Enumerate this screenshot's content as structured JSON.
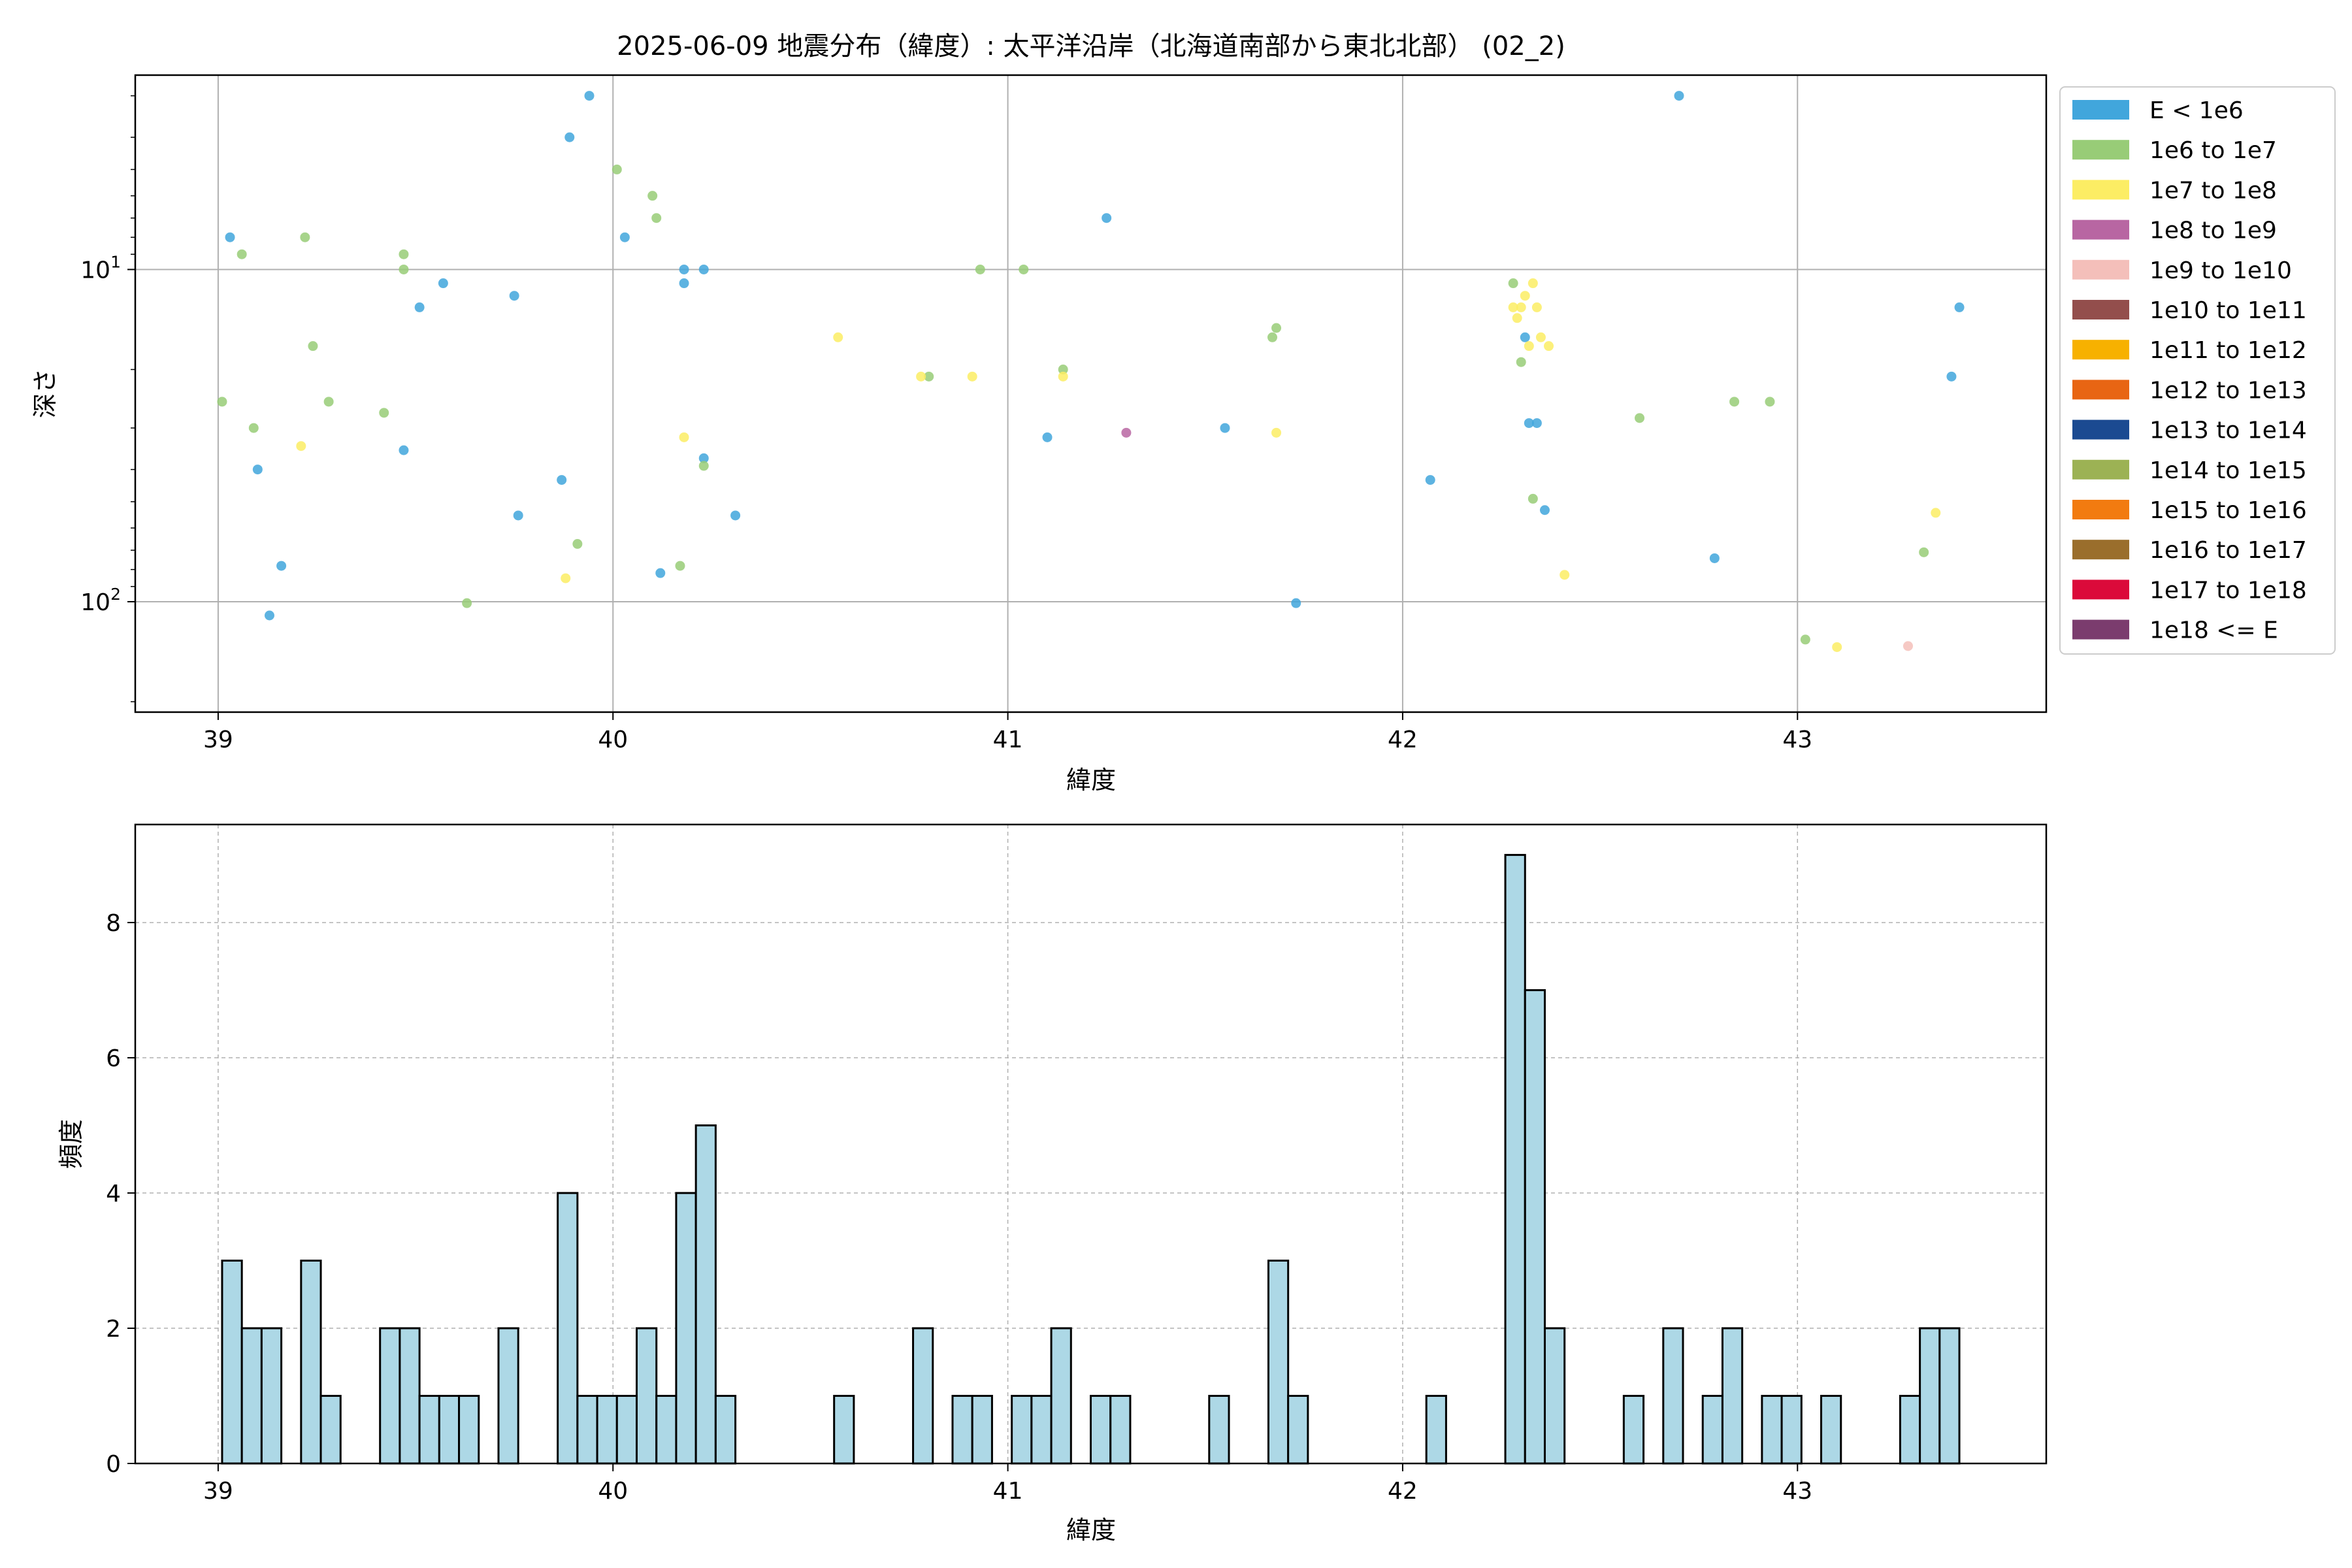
{
  "figure": {
    "title": "2025-06-09 地震分布（緯度）: 太平洋沿岸（北海道南部から東北北部） (02_2)"
  },
  "legend": {
    "entries": [
      {
        "label": "E < 1e6",
        "color": "#41a6dc"
      },
      {
        "label": "1e6 to 1e7",
        "color": "#98cc77"
      },
      {
        "label": "1e7 to 1e8",
        "color": "#fced64"
      },
      {
        "label": "1e8 to 1e9",
        "color": "#b866a2"
      },
      {
        "label": "1e9 to 1e10",
        "color": "#f4bfba"
      },
      {
        "label": "1e10 to 1e11",
        "color": "#934e4c"
      },
      {
        "label": "1e11 to 1e12",
        "color": "#f7b100"
      },
      {
        "label": "1e12 to 1e13",
        "color": "#e86513"
      },
      {
        "label": "1e13 to 1e14",
        "color": "#1b4a91"
      },
      {
        "label": "1e14 to 1e15",
        "color": "#9cb254"
      },
      {
        "label": "1e15 to 1e16",
        "color": "#f27b10"
      },
      {
        "label": "1e16 to 1e17",
        "color": "#9a6e2c"
      },
      {
        "label": "1e17 to 1e18",
        "color": "#db0a3a"
      },
      {
        "label": "1e18 <= E",
        "color": "#7b3c6e"
      }
    ]
  },
  "chart_data": [
    {
      "type": "scatter",
      "xlabel": "緯度",
      "ylabel": "深さ",
      "xlim": [
        38.79,
        43.63
      ],
      "xticks": [
        "39",
        "40",
        "41",
        "42",
        "43"
      ],
      "xtick_values": [
        39,
        40,
        41,
        42,
        43
      ],
      "yscale": "log",
      "yinverted": true,
      "ylim": [
        2.6,
        215
      ],
      "yticks": [
        10,
        100
      ],
      "ytick_labels": [
        [
          "10",
          "1"
        ],
        [
          "10",
          "2"
        ]
      ],
      "grid": true,
      "legend_position": "outside-right",
      "series": [
        {
          "name": "E < 1e6",
          "color": "#41a6dc",
          "points": [
            [
              39.03,
              8
            ],
            [
              39.1,
              40
            ],
            [
              39.13,
              110
            ],
            [
              39.16,
              78
            ],
            [
              39.47,
              35
            ],
            [
              39.51,
              13
            ],
            [
              39.57,
              11
            ],
            [
              39.75,
              12
            ],
            [
              39.76,
              55
            ],
            [
              39.87,
              43
            ],
            [
              39.89,
              4
            ],
            [
              39.94,
              3
            ],
            [
              40.03,
              8
            ],
            [
              40.12,
              82
            ],
            [
              40.18,
              10
            ],
            [
              40.18,
              11
            ],
            [
              40.23,
              10
            ],
            [
              40.23,
              37
            ],
            [
              40.31,
              55
            ],
            [
              41.1,
              32
            ],
            [
              41.25,
              7
            ],
            [
              41.55,
              30
            ],
            [
              41.73,
              101
            ],
            [
              42.07,
              43
            ],
            [
              42.31,
              16
            ],
            [
              42.32,
              29
            ],
            [
              42.34,
              29
            ],
            [
              42.36,
              53
            ],
            [
              42.7,
              3
            ],
            [
              42.79,
              74
            ],
            [
              43.39,
              21
            ],
            [
              43.41,
              13
            ]
          ]
        },
        {
          "name": "1e6 to 1e7",
          "color": "#98cc77",
          "points": [
            [
              39.01,
              25
            ],
            [
              39.06,
              9
            ],
            [
              39.09,
              30
            ],
            [
              39.22,
              8
            ],
            [
              39.24,
              17
            ],
            [
              39.28,
              25
            ],
            [
              39.42,
              27
            ],
            [
              39.47,
              9
            ],
            [
              39.47,
              10
            ],
            [
              39.63,
              101
            ],
            [
              39.91,
              67
            ],
            [
              40.01,
              5
            ],
            [
              40.1,
              6
            ],
            [
              40.11,
              7
            ],
            [
              40.17,
              78
            ],
            [
              40.23,
              39
            ],
            [
              40.8,
              21
            ],
            [
              40.93,
              10
            ],
            [
              41.04,
              10
            ],
            [
              41.14,
              20
            ],
            [
              41.67,
              16
            ],
            [
              41.68,
              15
            ],
            [
              42.28,
              11
            ],
            [
              42.3,
              19
            ],
            [
              42.33,
              49
            ],
            [
              42.6,
              28
            ],
            [
              42.84,
              25
            ],
            [
              42.93,
              25
            ],
            [
              43.02,
              130
            ],
            [
              43.32,
              71
            ]
          ]
        },
        {
          "name": "1e7 to 1e8",
          "color": "#fced64",
          "points": [
            [
              39.21,
              34
            ],
            [
              39.88,
              85
            ],
            [
              40.18,
              32
            ],
            [
              40.57,
              16
            ],
            [
              40.78,
              21
            ],
            [
              40.91,
              21
            ],
            [
              41.14,
              21
            ],
            [
              41.68,
              31
            ],
            [
              42.28,
              13
            ],
            [
              42.29,
              14
            ],
            [
              42.3,
              13
            ],
            [
              42.31,
              12
            ],
            [
              42.32,
              17
            ],
            [
              42.33,
              11
            ],
            [
              42.34,
              13
            ],
            [
              42.35,
              16
            ],
            [
              42.37,
              17
            ],
            [
              42.41,
              83
            ],
            [
              43.1,
              137
            ],
            [
              43.35,
              54
            ]
          ]
        },
        {
          "name": "1e8 to 1e9",
          "color": "#b866a2",
          "points": [
            [
              41.3,
              31
            ]
          ]
        },
        {
          "name": "1e9 to 1e10",
          "color": "#f4bfba",
          "points": [
            [
              43.28,
              136
            ]
          ]
        }
      ]
    },
    {
      "type": "bar",
      "subtype": "histogram",
      "xlabel": "緯度",
      "ylabel": "頻度",
      "xlim": [
        38.79,
        43.63
      ],
      "ylim": [
        0,
        9.45
      ],
      "xticks": [
        "39",
        "40",
        "41",
        "42",
        "43"
      ],
      "xtick_values": [
        39,
        40,
        41,
        42,
        43
      ],
      "yticks": [
        "0",
        "2",
        "4",
        "6",
        "8"
      ],
      "ytick_values": [
        0,
        2,
        4,
        6,
        8
      ],
      "grid": true,
      "bar_color": "#add8e6",
      "bin_width": 0.05,
      "bins": [
        [
          39.01,
          3
        ],
        [
          39.06,
          2
        ],
        [
          39.11,
          2
        ],
        [
          39.21,
          3
        ],
        [
          39.26,
          1
        ],
        [
          39.41,
          2
        ],
        [
          39.46,
          2
        ],
        [
          39.51,
          1
        ],
        [
          39.56,
          1
        ],
        [
          39.61,
          1
        ],
        [
          39.71,
          2
        ],
        [
          39.86,
          4
        ],
        [
          39.91,
          1
        ],
        [
          39.96,
          1
        ],
        [
          40.01,
          1
        ],
        [
          40.06,
          2
        ],
        [
          40.11,
          1
        ],
        [
          40.16,
          4
        ],
        [
          40.21,
          5
        ],
        [
          40.26,
          1
        ],
        [
          40.56,
          1
        ],
        [
          40.76,
          2
        ],
        [
          40.86,
          1
        ],
        [
          40.91,
          1
        ],
        [
          41.01,
          1
        ],
        [
          41.06,
          1
        ],
        [
          41.11,
          2
        ],
        [
          41.21,
          1
        ],
        [
          41.26,
          1
        ],
        [
          41.51,
          1
        ],
        [
          41.66,
          3
        ],
        [
          41.71,
          1
        ],
        [
          42.06,
          1
        ],
        [
          42.26,
          9
        ],
        [
          42.31,
          7
        ],
        [
          42.36,
          2
        ],
        [
          42.56,
          1
        ],
        [
          42.66,
          2
        ],
        [
          42.76,
          1
        ],
        [
          42.81,
          2
        ],
        [
          42.91,
          1
        ],
        [
          42.96,
          1
        ],
        [
          43.06,
          1
        ],
        [
          43.26,
          1
        ],
        [
          43.31,
          2
        ],
        [
          43.36,
          2
        ]
      ]
    }
  ]
}
